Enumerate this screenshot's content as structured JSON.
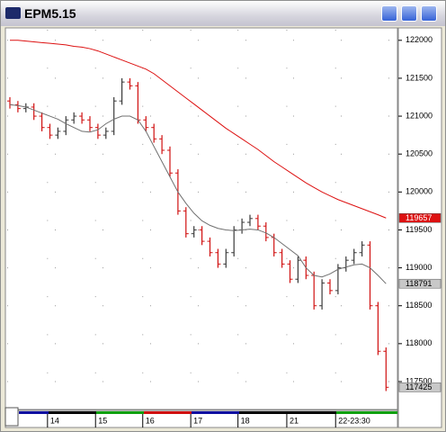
{
  "chart_data": {
    "type": "ohlc",
    "title": "EPM5.15",
    "open": [
      121200,
      121150,
      121100,
      121120,
      121000,
      120850,
      120750,
      120800,
      120950,
      121000,
      120950,
      120850,
      120750,
      120800,
      121200,
      121450,
      121400,
      120950,
      120850,
      120700,
      120550,
      120250,
      119750,
      119450,
      119500,
      119350,
      119200,
      119050,
      119200,
      119500,
      119600,
      119650,
      119550,
      119400,
      119200,
      119050,
      118850,
      119100,
      118900,
      118500,
      118800,
      118700,
      119000,
      119100,
      119200,
      119300,
      118500,
      117900
    ],
    "high": [
      121250,
      121200,
      121170,
      121170,
      121050,
      120900,
      120850,
      121000,
      121050,
      121050,
      121000,
      120900,
      120850,
      121250,
      121500,
      121500,
      121450,
      121000,
      120900,
      120750,
      120600,
      120300,
      119800,
      119550,
      119550,
      119400,
      119250,
      119250,
      119550,
      119650,
      119700,
      119700,
      119600,
      119450,
      119250,
      119100,
      119150,
      119150,
      118950,
      118850,
      118850,
      119050,
      119150,
      119250,
      119350,
      119350,
      118550,
      117950
    ],
    "low": [
      121100,
      121050,
      121050,
      120950,
      120800,
      120700,
      120700,
      120750,
      120900,
      120900,
      120800,
      120700,
      120700,
      120750,
      121150,
      121350,
      120900,
      120800,
      120650,
      120500,
      120200,
      119700,
      119400,
      119400,
      119300,
      119150,
      119000,
      119000,
      119150,
      119450,
      119550,
      119500,
      119350,
      119150,
      119000,
      118800,
      118800,
      118850,
      118450,
      118450,
      118650,
      118650,
      118950,
      119050,
      119150,
      118450,
      117850,
      117375
    ],
    "close": [
      121150,
      121100,
      121120,
      121000,
      120850,
      120750,
      120800,
      120950,
      121000,
      120950,
      120850,
      120750,
      120800,
      121200,
      121450,
      121400,
      120950,
      120850,
      120700,
      120550,
      120250,
      119750,
      119450,
      119500,
      119350,
      119200,
      119050,
      119200,
      119500,
      119600,
      119650,
      119550,
      119400,
      119200,
      119050,
      118850,
      119100,
      118900,
      118500,
      118800,
      118700,
      119000,
      119100,
      119200,
      119300,
      118500,
      117900,
      117425
    ],
    "up_color": "#3a3a3a",
    "down_color": "#d01010",
    "lines": [
      {
        "color": "#dd1111",
        "values": [
          122000,
          122000,
          121990,
          121980,
          121970,
          121960,
          121950,
          121940,
          121920,
          121910,
          121890,
          121860,
          121820,
          121780,
          121740,
          121700,
          121660,
          121620,
          121560,
          121480,
          121400,
          121320,
          121240,
          121160,
          121080,
          121000,
          120920,
          120840,
          120770,
          120700,
          120630,
          120560,
          120480,
          120400,
          120330,
          120260,
          120190,
          120120,
          120060,
          120000,
          119950,
          119900,
          119860,
          119820,
          119780,
          119740,
          119700,
          119657
        ]
      },
      {
        "color": "#707070",
        "values": [
          121150,
          121140,
          121120,
          121080,
          121040,
          121000,
          120960,
          120900,
          120850,
          120800,
          120790,
          120820,
          120900,
          120960,
          121000,
          121000,
          120950,
          120800,
          120600,
          120400,
          120200,
          120000,
          119850,
          119720,
          119620,
          119560,
          119520,
          119500,
          119490,
          119500,
          119510,
          119500,
          119460,
          119400,
          119320,
          119240,
          119160,
          119000,
          118900,
          118880,
          118920,
          118980,
          119010,
          119040,
          119050,
          119000,
          118900,
          118791
        ]
      }
    ],
    "ylim": [
      117120,
      122140
    ],
    "yticks": [
      117500,
      118000,
      118500,
      119000,
      119500,
      120000,
      120500,
      121000,
      121500,
      122000
    ],
    "x_labels": [
      {
        "label": "14",
        "at": 4.7
      },
      {
        "label": "15",
        "at": 10.7
      },
      {
        "label": "16",
        "at": 16.6
      },
      {
        "label": "17",
        "at": 22.6
      },
      {
        "label": "18",
        "at": 28.5
      },
      {
        "label": "21",
        "at": 34.6
      },
      {
        "label": "22-23:30",
        "at": 40.7
      }
    ],
    "grid": true
  }
}
